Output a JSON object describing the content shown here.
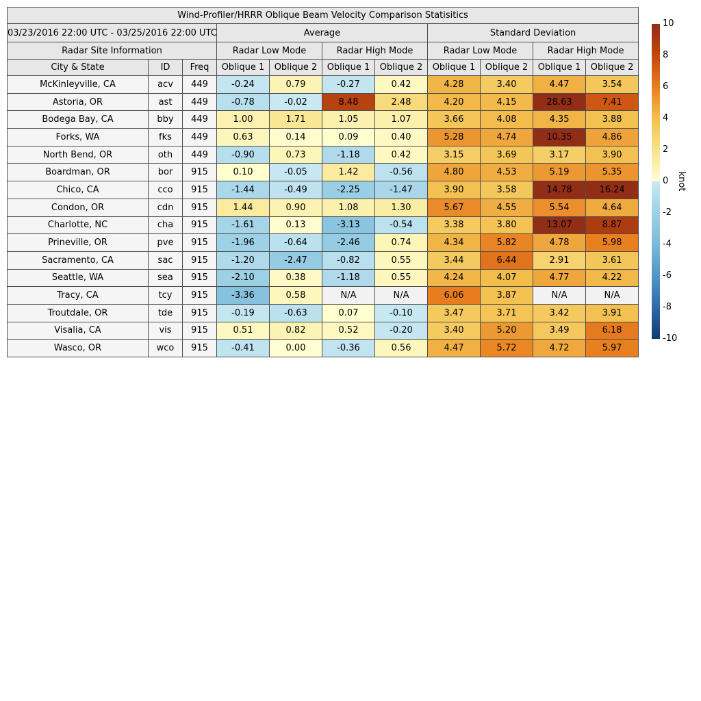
{
  "header": {
    "group_average": "Average",
    "group_std": "Standard Deviation",
    "site_info": "Radar Site Information",
    "low_mode": "Radar Low Mode",
    "high_mode": "Radar High Mode",
    "col_city": "City & State",
    "col_id": "ID",
    "col_freq": "Freq",
    "oblique1": "Oblique 1",
    "oblique2": "Oblique 2"
  },
  "colors": {
    "header_bg": "#e7e7e7",
    "site_bg": "#f5f5f5",
    "na_color": "#f2f2f2",
    "border": "#4d4d4d"
  },
  "colorbar": {
    "label": "knot",
    "min": -10,
    "max": 10,
    "ticks": [
      "10",
      "8",
      "6",
      "4",
      "2",
      "0",
      "-2",
      "-4",
      "-6",
      "-8",
      "-10"
    ],
    "positive_stops": [
      [
        "0",
        "#ffffd2"
      ],
      [
        "2",
        "#f8e38b"
      ],
      [
        "4",
        "#f3bf4e"
      ],
      [
        "6",
        "#e87f20"
      ],
      [
        "8",
        "#c3470e"
      ],
      [
        "10",
        "#922d16"
      ]
    ],
    "negative_stops": [
      [
        "0",
        "#c9e8f2"
      ],
      [
        "-2",
        "#9ed1e6"
      ],
      [
        "-4",
        "#7abad9"
      ],
      [
        "-6",
        "#5295c6"
      ],
      [
        "-8",
        "#2f69ac"
      ],
      [
        "-10",
        "#123a6d"
      ]
    ]
  },
  "chart_data": {
    "type": "heatmap",
    "title": "Wind-Profiler/HRRR Oblique Beam Velocity Comparison Statisitics",
    "period": "03/23/2016 22:00 UTC - 03/25/2016 22:00 UTC",
    "unit": "knot",
    "colorbar_range": [
      -10,
      10
    ],
    "legend_position": "right",
    "column_groups": [
      {
        "group": "Radar Site Information",
        "columns": [
          "City & State",
          "ID",
          "Freq"
        ]
      },
      {
        "group": "Average",
        "subgroup": "Radar Low Mode",
        "columns": [
          "Oblique 1",
          "Oblique 2"
        ]
      },
      {
        "group": "Average",
        "subgroup": "Radar High Mode",
        "columns": [
          "Oblique 1",
          "Oblique 2"
        ]
      },
      {
        "group": "Standard Deviation",
        "subgroup": "Radar Low Mode",
        "columns": [
          "Oblique 1",
          "Oblique 2"
        ]
      },
      {
        "group": "Standard Deviation",
        "subgroup": "Radar High Mode",
        "columns": [
          "Oblique 1",
          "Oblique 2"
        ]
      }
    ],
    "rows": [
      {
        "city": "McKinleyville, CA",
        "id": "acv",
        "freq": "449",
        "values": [
          "-0.24",
          "0.79",
          "-0.27",
          "0.42",
          "4.28",
          "3.40",
          "4.47",
          "3.54"
        ]
      },
      {
        "city": "Astoria, OR",
        "id": "ast",
        "freq": "449",
        "values": [
          "-0.78",
          "-0.02",
          "8.48",
          "2.48",
          "4.20",
          "4.15",
          "28.63",
          "7.41"
        ]
      },
      {
        "city": "Bodega Bay, CA",
        "id": "bby",
        "freq": "449",
        "values": [
          "1.00",
          "1.71",
          "1.05",
          "1.07",
          "3.66",
          "4.08",
          "4.35",
          "3.88"
        ]
      },
      {
        "city": "Forks, WA",
        "id": "fks",
        "freq": "449",
        "values": [
          "0.63",
          "0.14",
          "0.09",
          "0.40",
          "5.28",
          "4.74",
          "10.35",
          "4.86"
        ]
      },
      {
        "city": "North Bend, OR",
        "id": "oth",
        "freq": "449",
        "values": [
          "-0.90",
          "0.73",
          "-1.18",
          "0.42",
          "3.15",
          "3.69",
          "3.17",
          "3.90"
        ]
      },
      {
        "city": "Boardman, OR",
        "id": "bor",
        "freq": "915",
        "values": [
          "0.10",
          "-0.05",
          "1.42",
          "-0.56",
          "4.80",
          "4.53",
          "5.19",
          "5.35"
        ]
      },
      {
        "city": "Chico, CA",
        "id": "cco",
        "freq": "915",
        "values": [
          "-1.44",
          "-0.49",
          "-2.25",
          "-1.47",
          "3.90",
          "3.58",
          "14.78",
          "16.24"
        ]
      },
      {
        "city": "Condon, OR",
        "id": "cdn",
        "freq": "915",
        "values": [
          "1.44",
          "0.90",
          "1.08",
          "1.30",
          "5.67",
          "4.55",
          "5.54",
          "4.64"
        ]
      },
      {
        "city": "Charlotte, NC",
        "id": "cha",
        "freq": "915",
        "values": [
          "-1.61",
          "0.13",
          "-3.13",
          "-0.54",
          "3.38",
          "3.80",
          "13.07",
          "8.87"
        ]
      },
      {
        "city": "Prineville, OR",
        "id": "pve",
        "freq": "915",
        "values": [
          "-1.96",
          "-0.64",
          "-2.46",
          "0.74",
          "4.34",
          "5.82",
          "4.78",
          "5.98"
        ]
      },
      {
        "city": "Sacramento, CA",
        "id": "sac",
        "freq": "915",
        "values": [
          "-1.20",
          "-2.47",
          "-0.82",
          "0.55",
          "3.44",
          "6.44",
          "2.91",
          "3.61"
        ]
      },
      {
        "city": "Seattle, WA",
        "id": "sea",
        "freq": "915",
        "values": [
          "-2.10",
          "0.38",
          "-1.18",
          "0.55",
          "4.24",
          "4.07",
          "4.77",
          "4.22"
        ]
      },
      {
        "city": "Tracy, CA",
        "id": "tcy",
        "freq": "915",
        "values": [
          "-3.36",
          "0.58",
          "N/A",
          "N/A",
          "6.06",
          "3.87",
          "N/A",
          "N/A"
        ]
      },
      {
        "city": "Troutdale, OR",
        "id": "tde",
        "freq": "915",
        "values": [
          "-0.19",
          "-0.63",
          "0.07",
          "-0.10",
          "3.47",
          "3.71",
          "3.42",
          "3.91"
        ]
      },
      {
        "city": "Visalia, CA",
        "id": "vis",
        "freq": "915",
        "values": [
          "0.51",
          "0.82",
          "0.52",
          "-0.20",
          "3.40",
          "5.20",
          "3.49",
          "6.18"
        ]
      },
      {
        "city": "Wasco, OR",
        "id": "wco",
        "freq": "915",
        "values": [
          "-0.41",
          "0.00",
          "-0.36",
          "0.56",
          "4.47",
          "5.72",
          "4.72",
          "5.97"
        ]
      }
    ]
  }
}
